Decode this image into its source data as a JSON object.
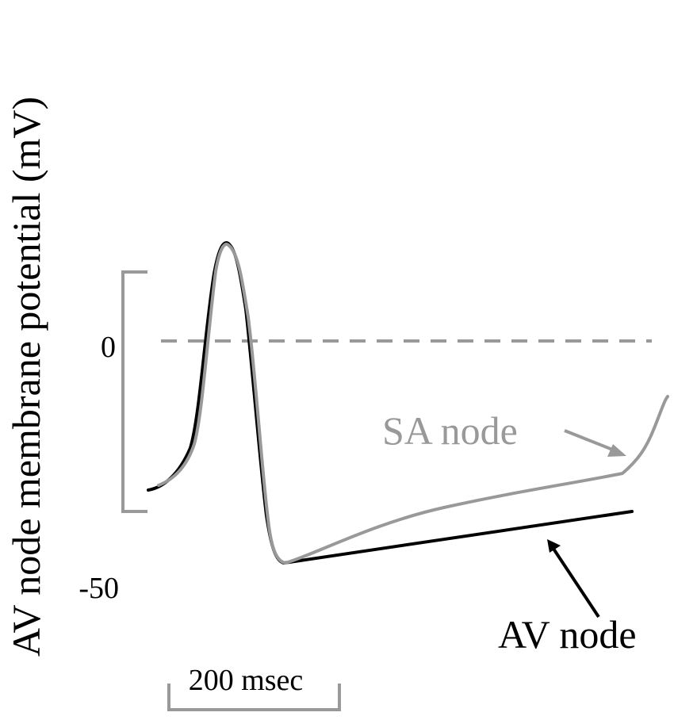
{
  "chart_data": {
    "type": "line",
    "title": "",
    "ylabel": "AV node membrane potential (mV)",
    "xlabel": "",
    "y_ticks": [
      "0",
      "-50"
    ],
    "scale_bar": {
      "label": "200 msec"
    },
    "colors": {
      "sa_node": "#999999",
      "av_node": "#000000",
      "zero_line": "#999999"
    },
    "series": [
      {
        "name": "SA node",
        "color": "#999999"
      },
      {
        "name": "AV node",
        "color": "#000000"
      }
    ],
    "annotations": [
      "SA node",
      "AV node"
    ]
  }
}
